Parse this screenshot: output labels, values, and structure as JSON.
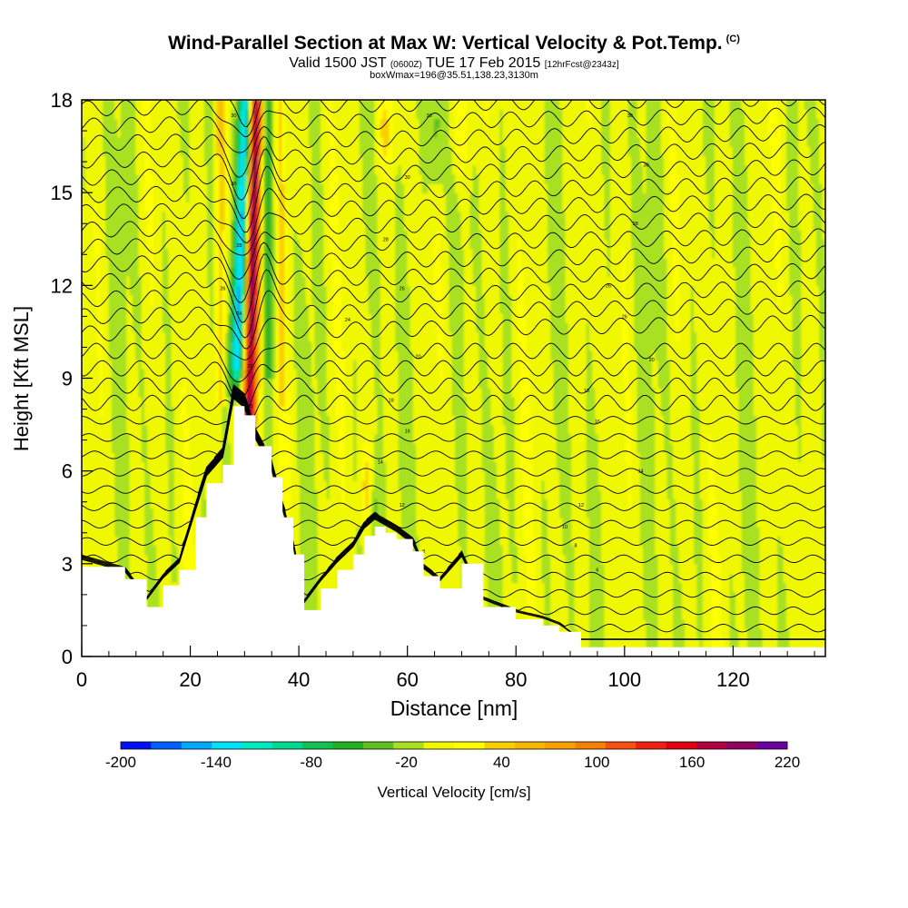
{
  "header": {
    "title": "Wind-Parallel Section at Max W: Vertical Velocity & Pot.Temp.",
    "copyright": "(C)",
    "subtitle_pre": "Valid 1500 JST",
    "subtitle_utc": "(0600Z)",
    "subtitle_mid": "TUE 17 Feb 2015",
    "subtitle_fcst": "[12hrFcst@2343z]",
    "subtitle2": "boxWmax=196@35.51,138.23,3130m"
  },
  "chart_data": {
    "type": "heatmap",
    "xlabel": "Distance [nm]",
    "ylabel": "Height [Kft MSL]",
    "xlim": [
      0,
      137
    ],
    "ylim": [
      0,
      18
    ],
    "x_ticks": [
      0,
      20,
      40,
      60,
      80,
      100,
      120
    ],
    "y_ticks": [
      0,
      3,
      6,
      9,
      12,
      15,
      18
    ],
    "grid": false,
    "field": "Vertical Velocity",
    "colorbar": {
      "label": "Vertical Velocity [cm/s]",
      "tick_labels": [
        "-200",
        "-140",
        "-80",
        "-20",
        "40",
        "100",
        "160",
        "220"
      ],
      "min": -200,
      "max": 220,
      "step": 20,
      "colors": [
        "#0010f0",
        "#0060ff",
        "#00a8ff",
        "#00e0f8",
        "#00e8c0",
        "#00d890",
        "#10c050",
        "#20b020",
        "#60c020",
        "#a8e020",
        "#f0f800",
        "#ffff00",
        "#f8d000",
        "#f8b800",
        "#f8a000",
        "#f88000",
        "#f85010",
        "#f02010",
        "#e00010",
        "#b00040",
        "#900060",
        "#6a00a0"
      ]
    },
    "terrain_profile": [
      [
        0,
        2.9
      ],
      [
        8,
        2.5
      ],
      [
        12,
        1.6
      ],
      [
        15,
        2.3
      ],
      [
        18,
        2.8
      ],
      [
        21,
        4.5
      ],
      [
        23,
        5.6
      ],
      [
        26,
        6.2
      ],
      [
        28,
        8.1
      ],
      [
        30,
        7.8
      ],
      [
        32,
        6.8
      ],
      [
        35,
        5.8
      ],
      [
        37,
        4.5
      ],
      [
        39,
        3.3
      ],
      [
        41,
        1.5
      ],
      [
        44,
        2.2
      ],
      [
        47,
        2.8
      ],
      [
        50,
        3.3
      ],
      [
        52,
        3.9
      ],
      [
        54,
        4.2
      ],
      [
        56,
        4.0
      ],
      [
        58,
        3.8
      ],
      [
        61,
        3.4
      ],
      [
        63,
        2.6
      ],
      [
        66,
        2.2
      ],
      [
        70,
        3.0
      ],
      [
        74,
        1.6
      ],
      [
        80,
        1.2
      ],
      [
        85,
        1.0
      ],
      [
        88,
        0.8
      ],
      [
        92,
        0.3
      ],
      [
        137,
        0.3
      ]
    ],
    "updraft_band": {
      "x": 31,
      "peak": 196
    },
    "downdraft_band": {
      "x": 28.5,
      "peak": -160
    },
    "theta_contour_labels": [
      {
        "x": 28,
        "y": 17.5,
        "v": "30"
      },
      {
        "x": 28,
        "y": 15.3,
        "v": "30"
      },
      {
        "x": 29,
        "y": 13.3,
        "v": "28"
      },
      {
        "x": 26,
        "y": 11.9,
        "v": "26"
      },
      {
        "x": 29,
        "y": 11.1,
        "v": "24"
      },
      {
        "x": 31,
        "y": 9.4,
        "v": "22"
      },
      {
        "x": 31,
        "y": 8.1,
        "v": "20"
      },
      {
        "x": 64,
        "y": 17.5,
        "v": "30"
      },
      {
        "x": 60,
        "y": 15.5,
        "v": "30"
      },
      {
        "x": 56,
        "y": 13.5,
        "v": "28"
      },
      {
        "x": 59,
        "y": 11.9,
        "v": "26"
      },
      {
        "x": 49,
        "y": 10.9,
        "v": "24"
      },
      {
        "x": 62,
        "y": 9.7,
        "v": "20"
      },
      {
        "x": 57,
        "y": 8.3,
        "v": "18"
      },
      {
        "x": 60,
        "y": 7.3,
        "v": "16"
      },
      {
        "x": 55,
        "y": 6.3,
        "v": "14"
      },
      {
        "x": 59,
        "y": 4.9,
        "v": "12"
      },
      {
        "x": 63,
        "y": 3.4,
        "v": "8"
      },
      {
        "x": 101,
        "y": 17.5,
        "v": "30"
      },
      {
        "x": 104,
        "y": 15.9,
        "v": "30"
      },
      {
        "x": 102,
        "y": 14.0,
        "v": "28"
      },
      {
        "x": 97,
        "y": 12.0,
        "v": "26"
      },
      {
        "x": 100,
        "y": 11.0,
        "v": "26"
      },
      {
        "x": 105,
        "y": 9.6,
        "v": "20"
      },
      {
        "x": 93,
        "y": 8.6,
        "v": "18"
      },
      {
        "x": 95,
        "y": 7.6,
        "v": "16"
      },
      {
        "x": 103,
        "y": 6.0,
        "v": "14"
      },
      {
        "x": 92,
        "y": 4.9,
        "v": "12"
      },
      {
        "x": 89,
        "y": 4.2,
        "v": "10"
      },
      {
        "x": 91,
        "y": 3.6,
        "v": "8"
      },
      {
        "x": 95,
        "y": 2.8,
        "v": "6"
      }
    ]
  }
}
